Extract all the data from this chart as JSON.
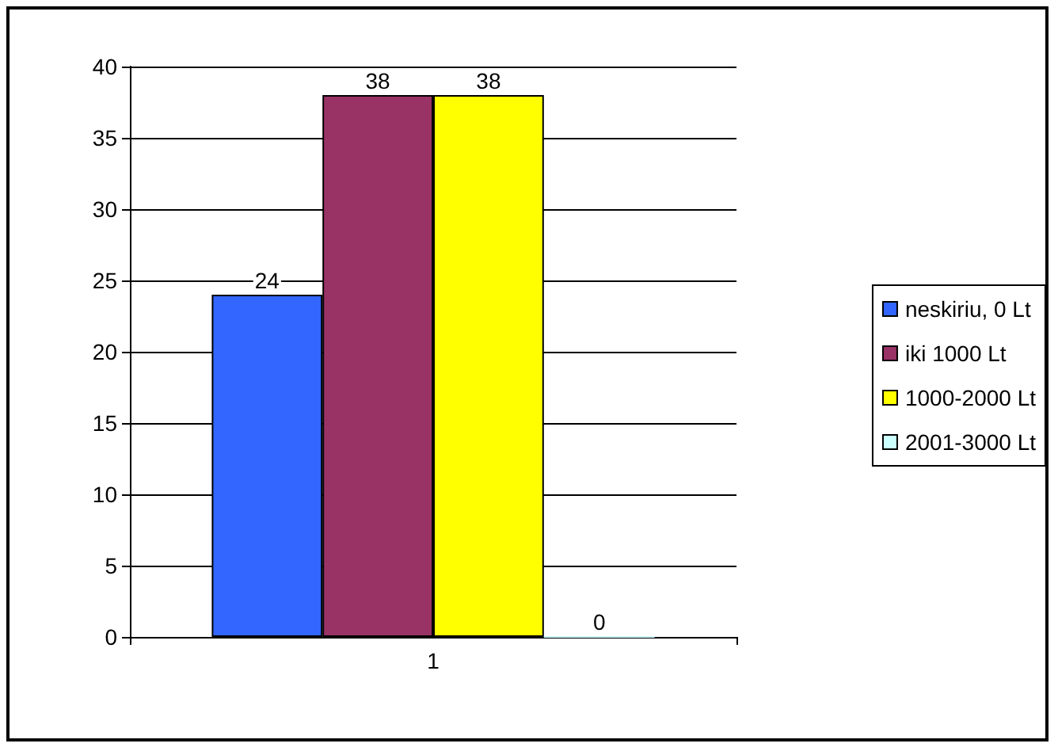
{
  "chart_data": {
    "type": "bar",
    "categories": [
      "1"
    ],
    "series": [
      {
        "name": "neskiriu, 0 Lt",
        "color": "#3366ff",
        "values": [
          24
        ]
      },
      {
        "name": "iki 1000 Lt",
        "color": "#993366",
        "values": [
          38
        ]
      },
      {
        "name": "1000-2000 Lt",
        "color": "#ffff00",
        "values": [
          38
        ]
      },
      {
        "name": "2001-3000 Lt",
        "color": "#ccffff",
        "values": [
          0
        ]
      }
    ],
    "ylim": [
      0,
      40
    ],
    "yticks": [
      0,
      5,
      10,
      15,
      20,
      25,
      30,
      35,
      40
    ],
    "grid": "y",
    "legend": "right",
    "data_labels": true
  }
}
